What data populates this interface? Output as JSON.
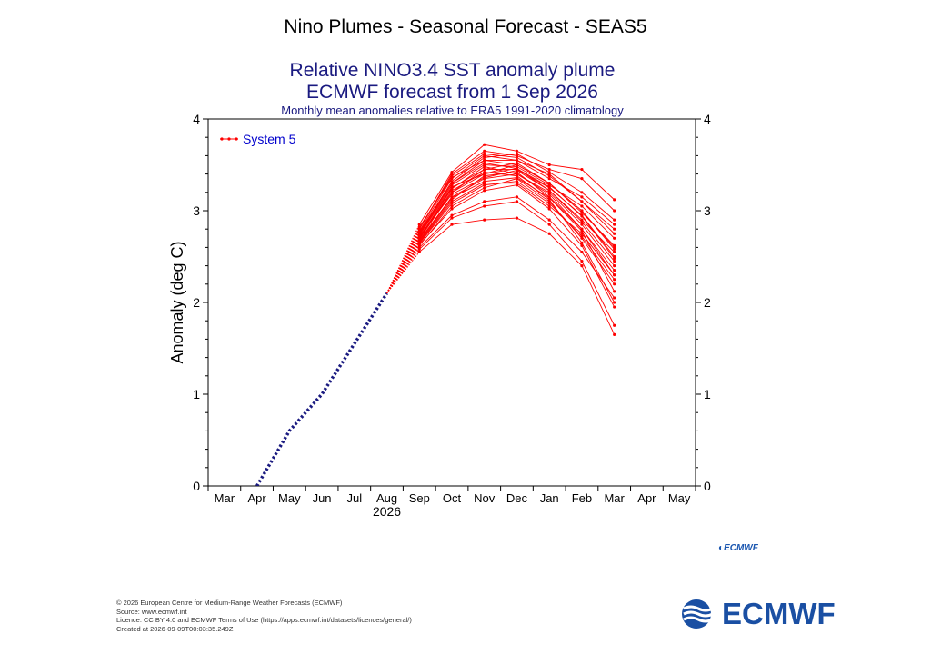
{
  "header": {
    "main_title": "Nino Plumes - Seasonal Forecast - SEAS5",
    "title_line1": "Relative NINO3.4 SST anomaly plume",
    "title_line2": "ECMWF forecast from 1 Sep 2026",
    "title_line3": "Monthly mean anomalies relative to ERA5 1991-2020 climatology"
  },
  "footer": {
    "line1": "© 2026 European Centre for Medium-Range Weather Forecasts (ECMWF)",
    "line2": "Source: www.ecmwf.int",
    "line3": "Licence: CC BY 4.0 and ECMWF Terms of Use (https://apps.ecmwf.int/datasets/licences/general/)",
    "line4": "Created at 2026-09-09T00:03:35.249Z"
  },
  "logo": {
    "small": "ECMWF",
    "big": "ECMWF"
  },
  "colors": {
    "forecast": "#ff0000",
    "observed": "#1a1a80",
    "title": "#1a1a80",
    "legend_text": "#0000cc",
    "logo": "#1a4fa3"
  },
  "chart_data": {
    "type": "line",
    "title": "Relative NINO3.4 SST anomaly plume",
    "ylabel": "Anomaly (deg C)",
    "xlabel": "",
    "year_label": "2026",
    "ylim": [
      0,
      4
    ],
    "yticks": [
      0,
      1,
      2,
      3,
      4
    ],
    "grid": false,
    "legend_position": "top-left",
    "legend_entries": [
      "System 5"
    ],
    "x_categories": [
      "Mar",
      "Apr",
      "May",
      "Jun",
      "Jul",
      "Aug",
      "Sep",
      "Oct",
      "Nov",
      "Dec",
      "Jan",
      "Feb",
      "Mar",
      "Apr",
      "May"
    ],
    "observed": {
      "x": [
        1,
        2,
        3,
        4,
        5
      ],
      "values": [
        0.0,
        0.6,
        1.0,
        1.55,
        2.1
      ]
    },
    "forecast_start": {
      "x": 5,
      "value": 2.1
    },
    "forecast_x": [
      6,
      7,
      8,
      9,
      10,
      11,
      12
    ],
    "forecast_members": [
      [
        2.7,
        3.25,
        3.45,
        3.45,
        3.25,
        2.95,
        2.5
      ],
      [
        2.75,
        3.3,
        3.55,
        3.55,
        3.4,
        3.1,
        2.8
      ],
      [
        2.65,
        3.1,
        3.3,
        3.3,
        3.05,
        2.75,
        2.3
      ],
      [
        2.8,
        3.4,
        3.65,
        3.6,
        3.45,
        3.35,
        3.0
      ],
      [
        2.6,
        2.95,
        3.1,
        3.15,
        2.9,
        2.55,
        2.05
      ],
      [
        2.72,
        3.2,
        3.4,
        3.5,
        3.3,
        3.0,
        2.6
      ],
      [
        2.68,
        3.15,
        3.35,
        3.4,
        3.2,
        2.85,
        2.4
      ],
      [
        2.85,
        3.42,
        3.72,
        3.65,
        3.5,
        3.45,
        3.12
      ],
      [
        2.55,
        2.85,
        2.9,
        2.92,
        2.75,
        2.4,
        1.65
      ],
      [
        2.78,
        3.35,
        3.6,
        3.55,
        3.35,
        3.15,
        2.85
      ],
      [
        2.62,
        3.05,
        3.25,
        3.35,
        3.1,
        2.7,
        2.2
      ],
      [
        2.74,
        3.28,
        3.5,
        3.48,
        3.28,
        3.05,
        2.7
      ],
      [
        2.66,
        3.12,
        3.38,
        3.42,
        3.15,
        2.8,
        2.35
      ],
      [
        2.7,
        3.22,
        3.42,
        3.38,
        3.12,
        2.65,
        2.0
      ],
      [
        2.76,
        3.32,
        3.58,
        3.62,
        3.42,
        3.2,
        2.9
      ],
      [
        2.64,
        3.08,
        3.28,
        3.32,
        3.08,
        2.72,
        2.25
      ],
      [
        2.72,
        3.18,
        3.36,
        3.44,
        3.22,
        2.9,
        2.55
      ],
      [
        2.8,
        3.38,
        3.62,
        3.58,
        3.38,
        3.1,
        2.75
      ],
      [
        2.58,
        2.92,
        3.05,
        3.1,
        2.85,
        2.45,
        1.75
      ],
      [
        2.69,
        3.2,
        3.45,
        3.52,
        3.3,
        2.98,
        2.62
      ],
      [
        2.77,
        3.3,
        3.52,
        3.46,
        3.22,
        2.88,
        2.45
      ],
      [
        2.63,
        3.02,
        3.22,
        3.28,
        3.02,
        2.62,
        1.95
      ],
      [
        2.71,
        3.24,
        3.48,
        3.4,
        3.18,
        2.8,
        2.3
      ],
      [
        2.82,
        3.36,
        3.55,
        3.5,
        3.3,
        3.0,
        2.58
      ],
      [
        2.67,
        3.14,
        3.32,
        3.36,
        3.14,
        2.78,
        2.12
      ],
      [
        2.73,
        3.26,
        3.4,
        3.46,
        3.26,
        2.94,
        2.48
      ]
    ]
  }
}
